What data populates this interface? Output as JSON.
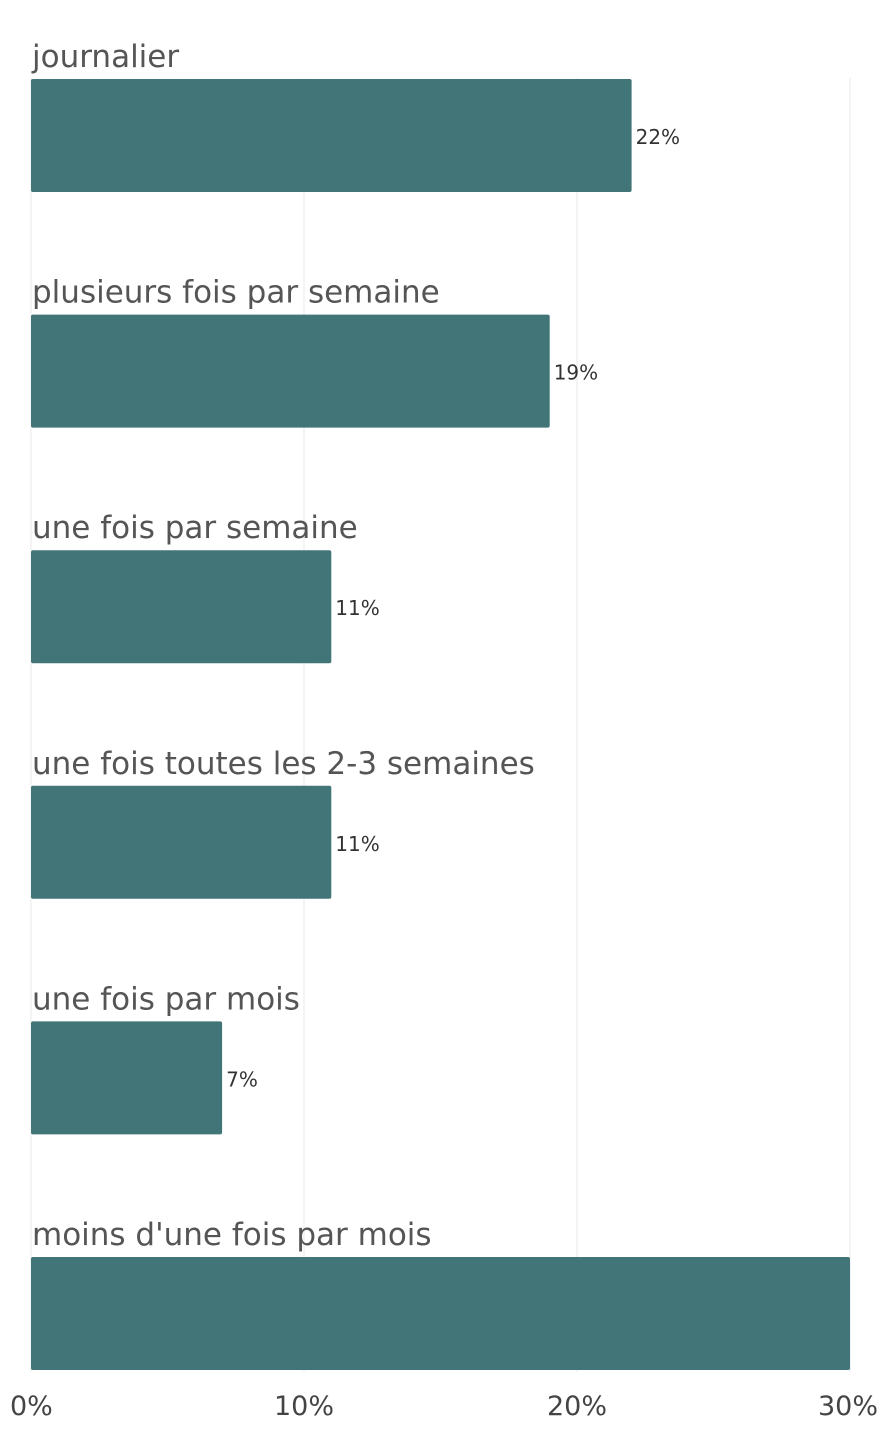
{
  "chart_data": {
    "type": "bar",
    "orientation": "horizontal",
    "categories": [
      "journalier",
      "plusieurs fois par semaine",
      "une fois par semaine",
      "une fois toutes les 2-3 semaines",
      "une fois par mois",
      "moins d'une fois par mois"
    ],
    "values": [
      22,
      19,
      11,
      11,
      7,
      30
    ],
    "value_labels": [
      "22%",
      "19%",
      "11%",
      "11%",
      "7%",
      ""
    ],
    "xlim": [
      0,
      30
    ],
    "x_ticks": [
      0,
      10,
      20,
      30
    ],
    "x_tick_labels": [
      "0%",
      "10%",
      "20%",
      "30%"
    ],
    "grid": true,
    "title": "",
    "xlabel": "",
    "ylabel": "",
    "bar_color": "#427578"
  }
}
